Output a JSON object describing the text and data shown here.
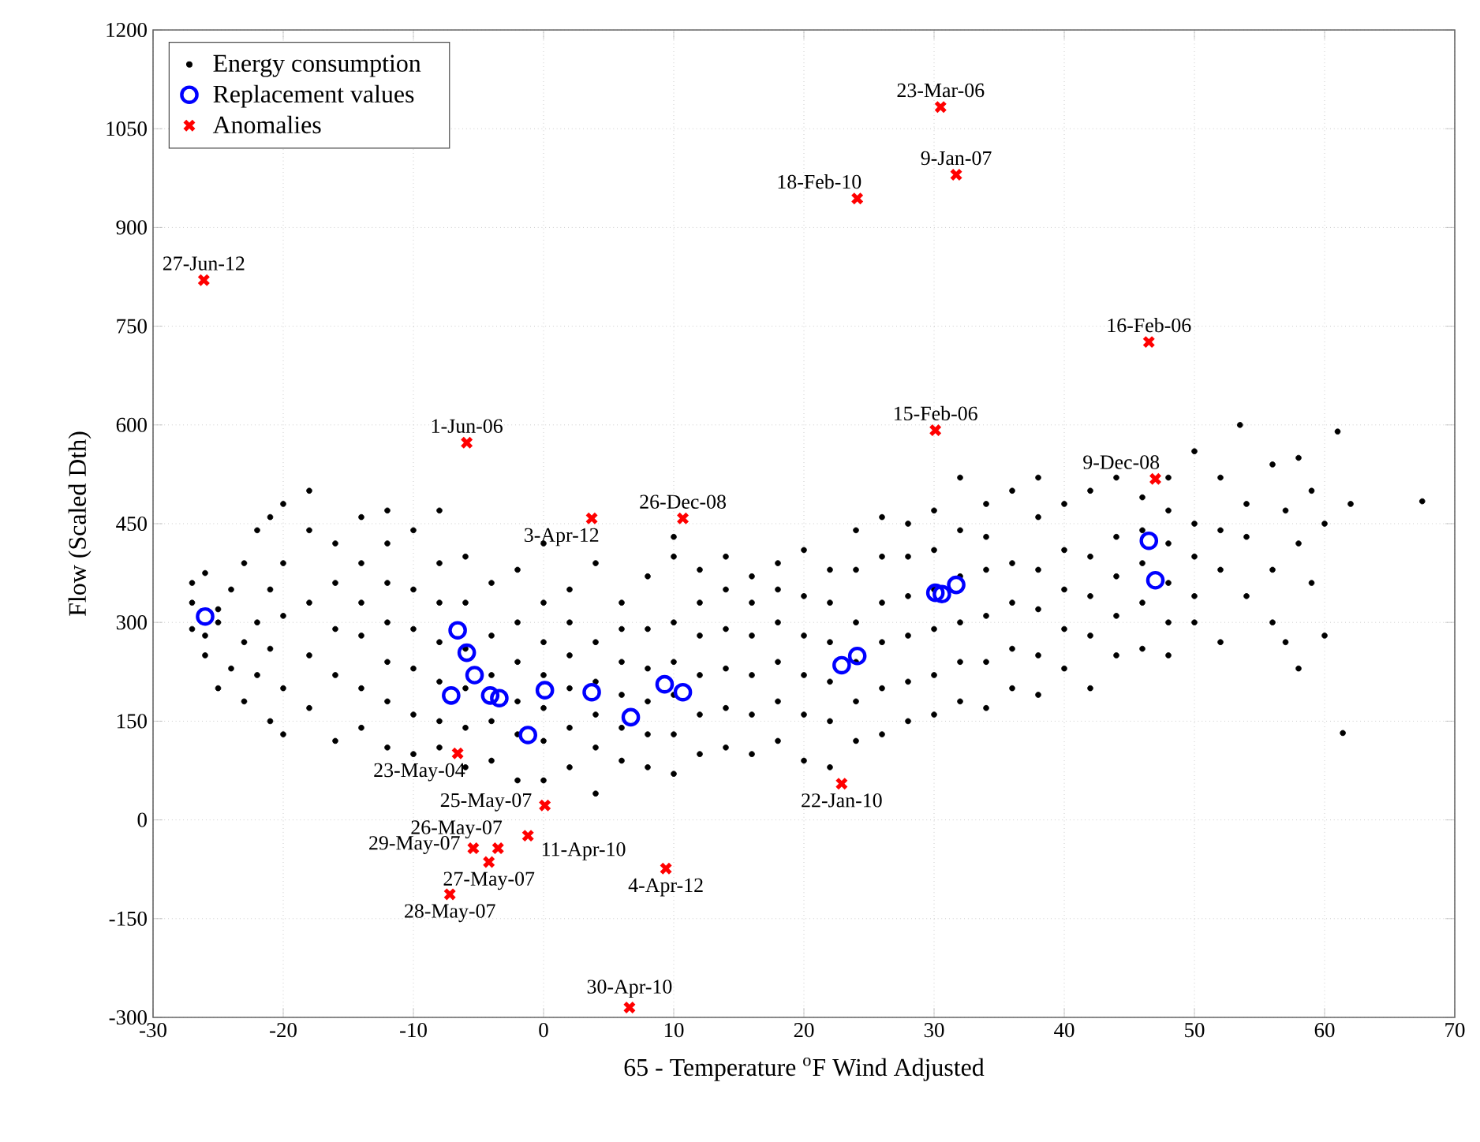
{
  "chart_data": {
    "type": "scatter",
    "xlabel": "65 - Temperature $^{o}$F Wind Adjusted",
    "ylabel": "Flow (Scaled Dth)",
    "xlim": [
      -30,
      70
    ],
    "xticks": [
      -30,
      -20,
      -10,
      0,
      10,
      20,
      30,
      40,
      50,
      60,
      70
    ],
    "ylim": [
      -300,
      1200
    ],
    "yticks": [
      -300,
      -150,
      0,
      150,
      300,
      450,
      600,
      750,
      900,
      1050,
      1200
    ],
    "grid": true,
    "legend": "top left",
    "series": [
      {
        "name": "Energy consumption",
        "color": "#000000",
        "marker": "circle",
        "x": [
          -27,
          -27,
          -27,
          -26,
          -26,
          -26,
          -25,
          -25,
          -25,
          -24,
          -24,
          -23,
          -23,
          -23,
          -22,
          -22,
          -22,
          -21,
          -21,
          -21,
          -21,
          -20,
          -20,
          -20,
          -20,
          -20,
          -18,
          -18,
          -18,
          -18,
          -18,
          -16,
          -16,
          -16,
          -16,
          -16,
          -14,
          -14,
          -14,
          -14,
          -14,
          -14,
          -12,
          -12,
          -12,
          -12,
          -12,
          -12,
          -12,
          -10,
          -10,
          -10,
          -10,
          -10,
          -10,
          -8,
          -8,
          -8,
          -8,
          -8,
          -8,
          -8,
          -6,
          -6,
          -6,
          -6,
          -6,
          -6,
          -4,
          -4,
          -4,
          -4,
          -4,
          -2,
          -2,
          -2,
          -2,
          -2,
          -2,
          0,
          0,
          0,
          0,
          0,
          0,
          0,
          2,
          2,
          2,
          2,
          2,
          2,
          4,
          4,
          4,
          4,
          4,
          4,
          6,
          6,
          6,
          6,
          6,
          6,
          8,
          8,
          8,
          8,
          8,
          8,
          10,
          10,
          10,
          10,
          10,
          10,
          10,
          12,
          12,
          12,
          12,
          12,
          12,
          14,
          14,
          14,
          14,
          14,
          14,
          16,
          16,
          16,
          16,
          16,
          16,
          18,
          18,
          18,
          18,
          18,
          18,
          20,
          20,
          20,
          20,
          20,
          20,
          22,
          22,
          22,
          22,
          22,
          22,
          24,
          24,
          24,
          24,
          24,
          24,
          26,
          26,
          26,
          26,
          26,
          26,
          28,
          28,
          28,
          28,
          28,
          28,
          30,
          30,
          30,
          30,
          30,
          30,
          32,
          32,
          32,
          32,
          32,
          32,
          34,
          34,
          34,
          34,
          34,
          34,
          36,
          36,
          36,
          36,
          36,
          38,
          38,
          38,
          38,
          38,
          38,
          40,
          40,
          40,
          40,
          40,
          42,
          42,
          42,
          42,
          42,
          44,
          44,
          44,
          44,
          44,
          46,
          46,
          46,
          46,
          46,
          48,
          48,
          48,
          48,
          48,
          48,
          50,
          50,
          50,
          50,
          50,
          52,
          52,
          52,
          52,
          53.5,
          54,
          54,
          54,
          56,
          56,
          56,
          57,
          57,
          58,
          58,
          58,
          59,
          59,
          60,
          60,
          61,
          61.4,
          62,
          67.5
        ],
        "values": [
          330,
          360,
          290,
          250,
          375,
          280,
          200,
          320,
          300,
          230,
          350,
          270,
          180,
          390,
          220,
          300,
          440,
          460,
          150,
          260,
          350,
          130,
          480,
          200,
          310,
          390,
          170,
          440,
          250,
          330,
          500,
          120,
          420,
          220,
          290,
          360,
          140,
          460,
          200,
          280,
          330,
          390,
          110,
          470,
          180,
          240,
          300,
          360,
          420,
          100,
          440,
          160,
          230,
          290,
          350,
          110,
          470,
          150,
          210,
          270,
          330,
          390,
          80,
          400,
          140,
          200,
          260,
          330,
          90,
          360,
          150,
          220,
          280,
          60,
          380,
          130,
          180,
          240,
          300,
          60,
          420,
          120,
          170,
          220,
          270,
          330,
          80,
          350,
          140,
          200,
          250,
          300,
          40,
          390,
          110,
          160,
          210,
          270,
          90,
          330,
          140,
          190,
          240,
          290,
          80,
          370,
          130,
          180,
          230,
          290,
          70,
          400,
          130,
          190,
          240,
          300,
          430,
          100,
          380,
          160,
          220,
          280,
          330,
          110,
          400,
          170,
          230,
          290,
          350,
          100,
          370,
          160,
          220,
          280,
          330,
          120,
          390,
          180,
          240,
          300,
          350,
          90,
          410,
          160,
          220,
          280,
          340,
          80,
          380,
          150,
          210,
          270,
          330,
          120,
          440,
          180,
          240,
          300,
          380,
          130,
          460,
          200,
          270,
          330,
          400,
          150,
          450,
          210,
          280,
          340,
          400,
          160,
          470,
          220,
          290,
          350,
          410,
          180,
          520,
          240,
          300,
          370,
          440,
          170,
          480,
          240,
          310,
          380,
          430,
          200,
          500,
          260,
          330,
          390,
          190,
          520,
          250,
          320,
          380,
          460,
          230,
          480,
          290,
          350,
          410,
          200,
          500,
          280,
          340,
          400,
          250,
          520,
          310,
          370,
          430,
          260,
          490,
          330,
          390,
          440,
          250,
          520,
          300,
          360,
          420,
          470,
          300,
          560,
          340,
          400,
          450,
          270,
          520,
          380,
          440,
          600,
          340,
          480,
          430,
          300,
          540,
          380,
          270,
          470,
          230,
          550,
          420,
          360,
          500,
          280,
          450,
          590,
          132,
          480,
          484
        ]
      },
      {
        "name": "Replacement values",
        "color": "#0000ff",
        "marker": "circle",
        "x": [
          -26.0,
          -6.6,
          -5.9,
          -5.3,
          -7.1,
          -4.1,
          -3.4,
          0.1,
          3.7,
          6.7,
          -1.2,
          9.3,
          10.7,
          22.9,
          24.1,
          30.1,
          30.6,
          31.7,
          46.5,
          47.0
        ],
        "values": [
          309,
          288,
          254,
          220,
          189,
          189,
          185,
          197,
          194,
          156,
          129,
          206,
          194,
          235,
          249,
          345,
          343,
          357,
          424,
          364
        ]
      },
      {
        "name": "Anomalies",
        "color": "#ff0000",
        "marker": "cross",
        "x": [
          -26.1,
          -5.9,
          3.7,
          10.7,
          30.5,
          31.7,
          24.1,
          46.5,
          30.1,
          47.0,
          -6.6,
          0.1,
          -1.2,
          -3.5,
          -5.4,
          -4.2,
          -7.2,
          9.4,
          6.6,
          22.9
        ],
        "values": [
          820,
          573,
          458,
          458,
          1083,
          980,
          944,
          726,
          592,
          518,
          101,
          22,
          -24,
          -43,
          -43,
          -64,
          -113,
          -74,
          -285,
          55
        ]
      }
    ],
    "annotations": [
      {
        "text": "27-Jun-12",
        "x": -26.1,
        "y": 820
      },
      {
        "text": "1-Jun-06",
        "x": -5.9,
        "y": 573
      },
      {
        "text": "3-Apr-12",
        "x": 3.7,
        "y": 458
      },
      {
        "text": "26-Dec-08",
        "x": 10.7,
        "y": 458
      },
      {
        "text": "23-Mar-06",
        "x": 30.5,
        "y": 1083
      },
      {
        "text": "9-Jan-07",
        "x": 31.7,
        "y": 980
      },
      {
        "text": "18-Feb-10",
        "x": 24.1,
        "y": 944
      },
      {
        "text": "16-Feb-06",
        "x": 46.5,
        "y": 726
      },
      {
        "text": "15-Feb-06",
        "x": 30.1,
        "y": 592
      },
      {
        "text": "9-Dec-08",
        "x": 47.0,
        "y": 518
      },
      {
        "text": "23-May-04",
        "x": -6.6,
        "y": 101
      },
      {
        "text": "25-May-07",
        "x": 0.1,
        "y": 22
      },
      {
        "text": "11-Apr-10",
        "x": -1.2,
        "y": -24
      },
      {
        "text": "26-May-07",
        "x": -3.5,
        "y": -43
      },
      {
        "text": "29-May-07",
        "x": -5.4,
        "y": -43
      },
      {
        "text": "27-May-07",
        "x": -4.2,
        "y": -64
      },
      {
        "text": "28-May-07",
        "x": -7.2,
        "y": -113
      },
      {
        "text": "4-Apr-12",
        "x": 9.4,
        "y": -74
      },
      {
        "text": "30-Apr-10",
        "x": 6.6,
        "y": -285
      },
      {
        "text": "22-Jan-10",
        "x": 22.9,
        "y": 55
      }
    ]
  }
}
